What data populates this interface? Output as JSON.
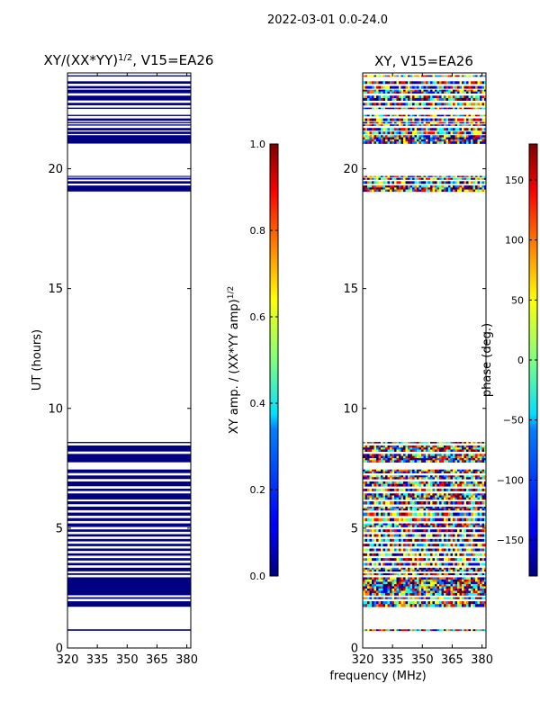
{
  "suptitle": "2022-03-01 0.0-24.0",
  "shared_xlabel": "frequency (MHz)",
  "colors": {
    "mask_color": "#000080",
    "colormap": [
      "#00007f",
      "#0000ff",
      "#007fff",
      "#00ffff",
      "#7fff7f",
      "#ffff00",
      "#ff7f00",
      "#ff0000",
      "#7f0000"
    ]
  },
  "chart_data": [
    {
      "type": "heatmap",
      "title": "XY/(XX*YY)",
      "title_superscript": "1/2",
      "title_suffix": ", V15=EA26",
      "ylabel": "UT (hours)",
      "xlim": [
        320,
        382
      ],
      "ylim": [
        0,
        24
      ],
      "xticks": [
        320,
        335,
        350,
        365,
        380
      ],
      "yticks": [
        0,
        5,
        10,
        15,
        20
      ],
      "fill_mode": "solid",
      "data_bands_hours": [
        [
          0.72,
          0.78
        ],
        [
          1.72,
          1.95
        ],
        [
          2.05,
          2.12
        ],
        [
          2.2,
          2.95
        ],
        [
          3.05,
          3.12
        ],
        [
          3.2,
          3.35
        ],
        [
          3.45,
          3.55
        ],
        [
          3.65,
          3.75
        ],
        [
          3.85,
          3.95
        ],
        [
          4.05,
          4.15
        ],
        [
          4.25,
          4.35
        ],
        [
          4.45,
          4.55
        ],
        [
          4.65,
          4.75
        ],
        [
          4.85,
          4.95
        ],
        [
          5.05,
          5.2
        ],
        [
          5.3,
          5.42
        ],
        [
          5.52,
          5.65
        ],
        [
          5.75,
          5.9
        ],
        [
          6.0,
          6.12
        ],
        [
          6.2,
          6.45
        ],
        [
          6.55,
          6.65
        ],
        [
          6.75,
          6.95
        ],
        [
          7.05,
          7.2
        ],
        [
          7.3,
          7.45
        ],
        [
          7.75,
          8.1
        ],
        [
          8.2,
          8.45
        ],
        [
          8.55,
          8.6
        ],
        [
          19.05,
          19.3
        ],
        [
          19.38,
          19.48
        ],
        [
          19.55,
          19.62
        ],
        [
          19.66,
          19.7
        ],
        [
          21.05,
          21.4
        ],
        [
          21.45,
          21.55
        ],
        [
          21.6,
          21.7
        ],
        [
          21.8,
          21.85
        ],
        [
          21.9,
          21.95
        ],
        [
          22.0,
          22.1
        ],
        [
          22.2,
          22.25
        ],
        [
          22.5,
          22.55
        ],
        [
          22.65,
          22.75
        ],
        [
          22.85,
          23.05
        ],
        [
          23.15,
          23.3
        ],
        [
          23.35,
          23.45
        ],
        [
          23.55,
          23.65
        ],
        [
          23.85,
          23.9
        ]
      ],
      "colorbar": {
        "label": "XY amp. / (XX*YY amp)",
        "label_superscript": "1/2",
        "range": [
          0.0,
          1.0
        ],
        "ticks": [
          0.0,
          0.2,
          0.4,
          0.6,
          0.8,
          1.0
        ],
        "tick_labels": [
          "0.0",
          "0.2",
          "0.4",
          "0.6",
          "0.8",
          "1.0"
        ]
      }
    },
    {
      "type": "heatmap",
      "title": "XY, V15=EA26",
      "xlim": [
        320,
        382
      ],
      "ylim": [
        0,
        24
      ],
      "xticks": [
        320,
        335,
        350,
        365,
        380
      ],
      "yticks": [
        0,
        5,
        10,
        15,
        20
      ],
      "fill_mode": "random_phase",
      "data_bands_hours": [
        [
          0.72,
          0.78
        ],
        [
          1.72,
          1.95
        ],
        [
          2.05,
          2.12
        ],
        [
          2.2,
          2.95
        ],
        [
          3.05,
          3.12
        ],
        [
          3.2,
          3.35
        ],
        [
          3.45,
          3.55
        ],
        [
          3.65,
          3.75
        ],
        [
          3.85,
          3.95
        ],
        [
          4.05,
          4.15
        ],
        [
          4.25,
          4.35
        ],
        [
          4.45,
          4.55
        ],
        [
          4.65,
          4.75
        ],
        [
          4.85,
          4.95
        ],
        [
          5.05,
          5.2
        ],
        [
          5.3,
          5.42
        ],
        [
          5.52,
          5.65
        ],
        [
          5.75,
          5.9
        ],
        [
          6.0,
          6.12
        ],
        [
          6.2,
          6.45
        ],
        [
          6.55,
          6.65
        ],
        [
          6.75,
          6.95
        ],
        [
          7.05,
          7.2
        ],
        [
          7.3,
          7.45
        ],
        [
          7.75,
          8.1
        ],
        [
          8.2,
          8.45
        ],
        [
          8.55,
          8.6
        ],
        [
          19.05,
          19.3
        ],
        [
          19.38,
          19.48
        ],
        [
          19.55,
          19.62
        ],
        [
          19.66,
          19.7
        ],
        [
          21.05,
          21.4
        ],
        [
          21.45,
          21.55
        ],
        [
          21.6,
          21.7
        ],
        [
          21.8,
          21.85
        ],
        [
          21.9,
          21.95
        ],
        [
          22.0,
          22.1
        ],
        [
          22.2,
          22.25
        ],
        [
          22.5,
          22.55
        ],
        [
          22.65,
          22.75
        ],
        [
          22.85,
          23.05
        ],
        [
          23.15,
          23.3
        ],
        [
          23.35,
          23.45
        ],
        [
          23.55,
          23.65
        ],
        [
          23.85,
          23.9
        ]
      ],
      "colorbar": {
        "label": "phase (deg.)",
        "range": [
          -180,
          180
        ],
        "ticks": [
          -150,
          -100,
          -50,
          0,
          50,
          100,
          150
        ],
        "tick_labels": [
          "−150",
          "−100",
          "−50",
          "0",
          "50",
          "100",
          "150"
        ]
      }
    }
  ]
}
